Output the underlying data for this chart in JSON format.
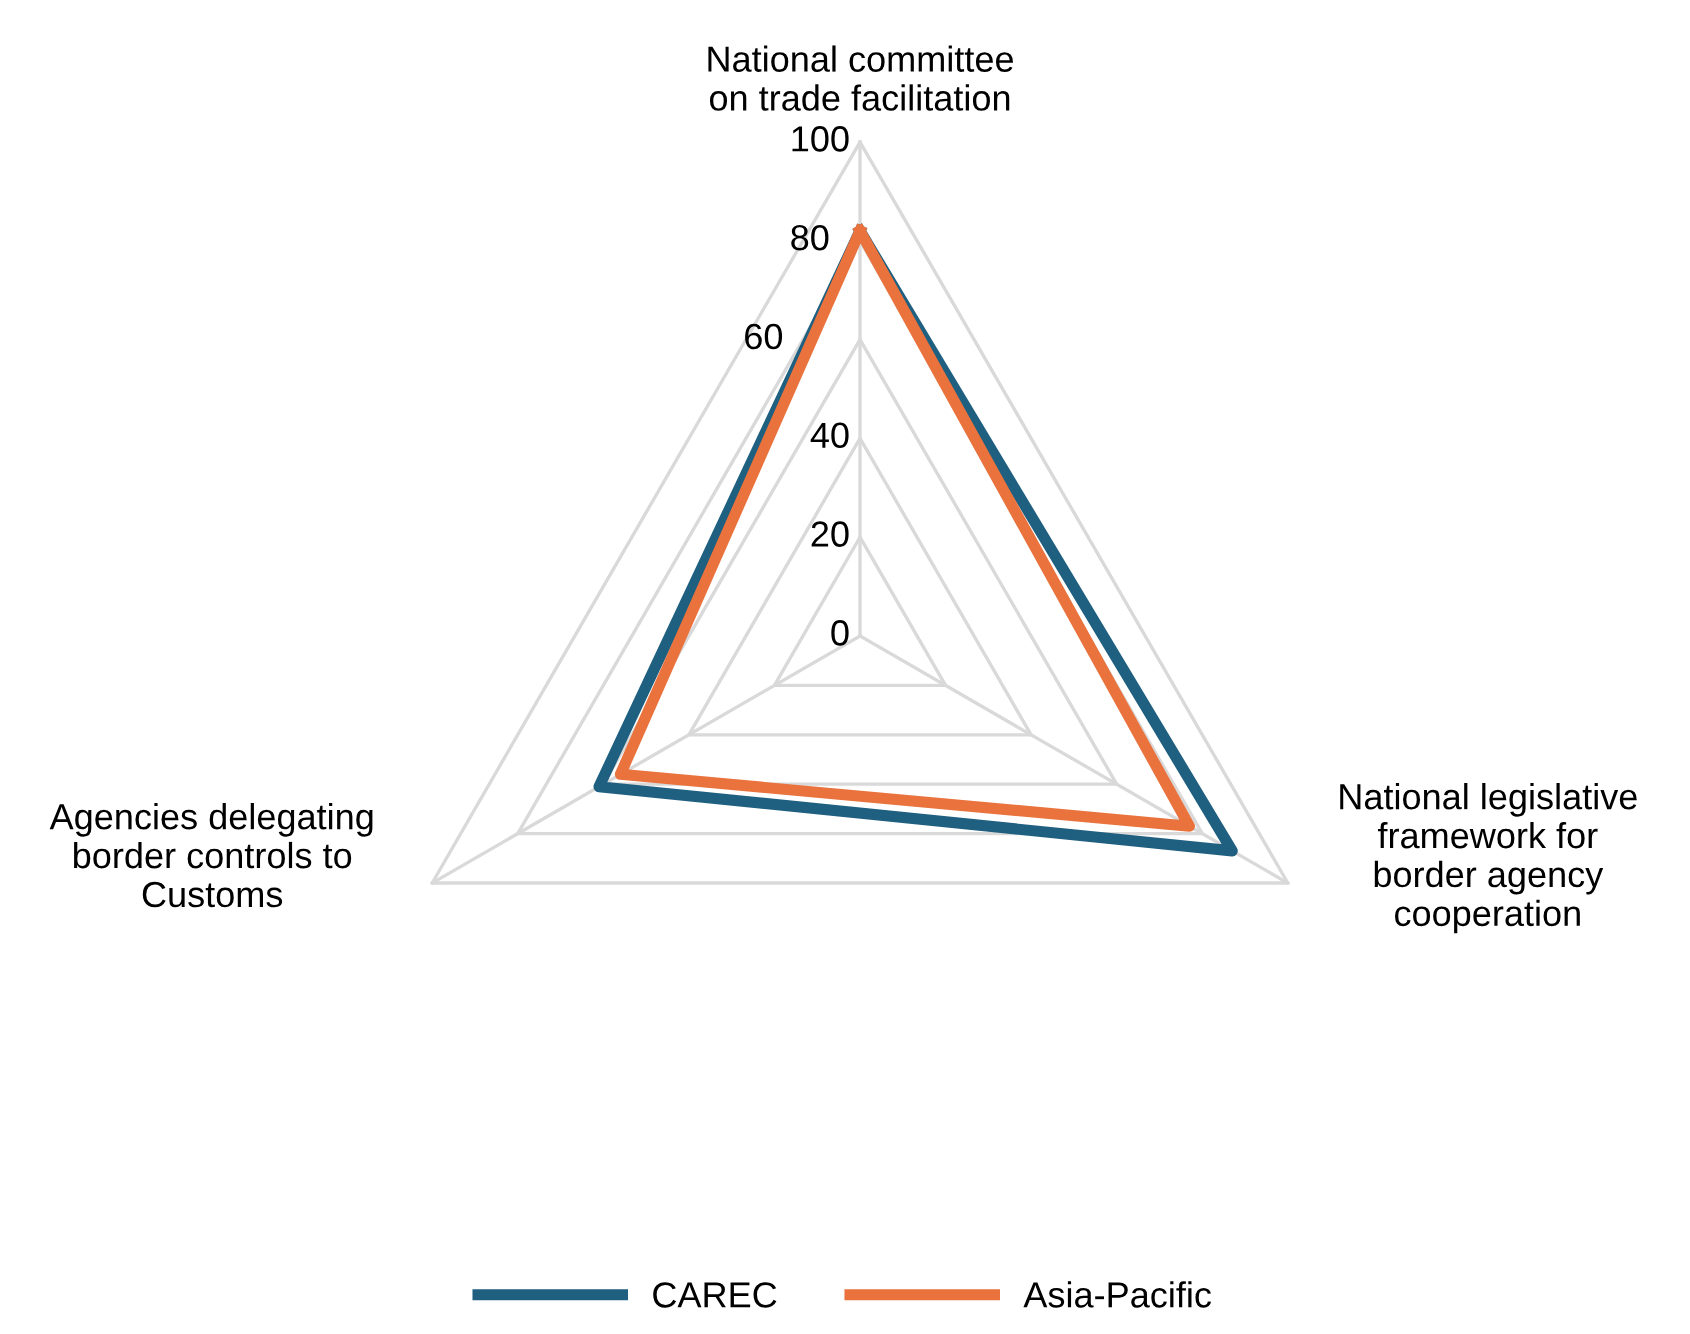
{
  "chart_data": {
    "type": "radar",
    "categories": [
      "National committee\non trade facilitation",
      "National legislative\nframework for\nborder agency\ncooperation",
      "Agencies delegating\nborder controls to\nCustoms"
    ],
    "series": [
      {
        "name": "CAREC",
        "color": "#1f5f7f",
        "values": [
          82,
          87,
          61
        ]
      },
      {
        "name": "Asia-Pacific",
        "color": "#e9723d",
        "values": [
          82,
          77,
          56
        ]
      }
    ],
    "ylim": [
      0,
      100
    ],
    "yticks": [
      0,
      20,
      40,
      60,
      80,
      100
    ],
    "grid": true,
    "legend": "bottom"
  }
}
